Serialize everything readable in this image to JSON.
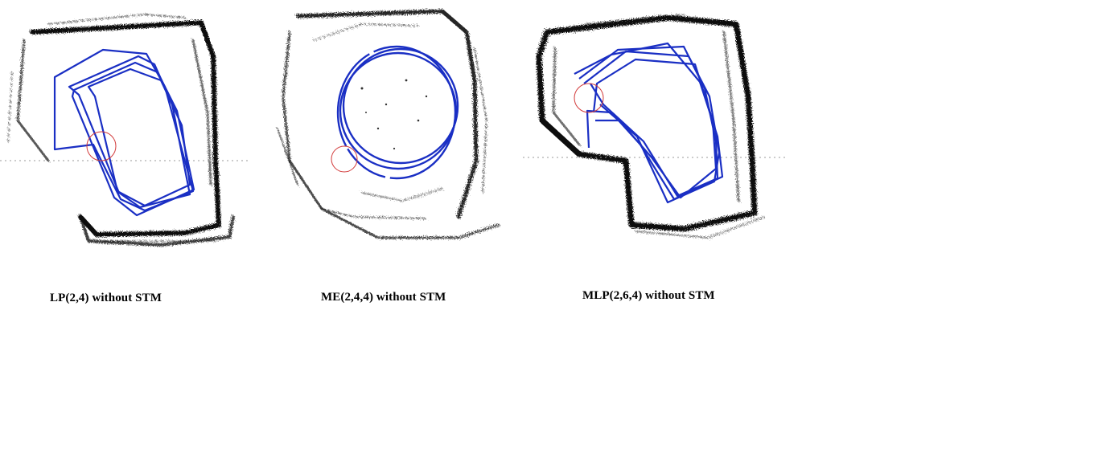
{
  "captions": {
    "lp": "LP(2,4) without STM",
    "me": "ME(2,4,4) without STM",
    "mlp": "MLP(2,6,4) without STM"
  },
  "colors": {
    "trajectory": "#1a2fc4",
    "map_walls": "#111111",
    "loop_closure_marker": "#d23a3a",
    "background": "#ffffff"
  }
}
